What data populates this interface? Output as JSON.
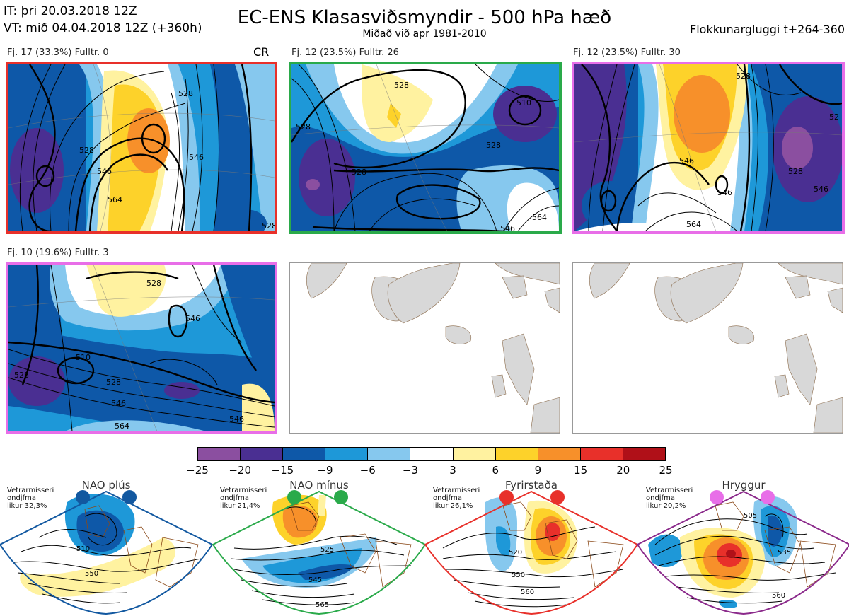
{
  "header": {
    "init_time": "IT: þri 20.03.2018 12Z",
    "valid_time": "VT: mið 04.04.2018 12Z  (+360h)",
    "title": "EC-ENS Klasasviðsmyndir - 500 hPa hæð",
    "subtitle": "Miðað við apr 1981-2010",
    "window": "Flokkunargluggi t+264-360"
  },
  "panels": [
    {
      "label": "Fj. 17 (33.3%)   Fulltr. 0",
      "tag": "CR",
      "border": "#e8302a",
      "contours": [
        "528",
        "546",
        "528",
        "564",
        "546",
        "528"
      ]
    },
    {
      "label": "Fj. 12 (23.5%)   Fulltr. 26",
      "tag": "",
      "border": "#2aaa4a",
      "contours": [
        "528",
        "510",
        "528",
        "528",
        "528",
        "546",
        "564"
      ]
    },
    {
      "label": "Fj. 12 (23.5%)   Fulltr. 30",
      "tag": "",
      "border": "#e86ee8",
      "contours": [
        "528",
        "546",
        "546",
        "528",
        "546",
        "564",
        "52"
      ]
    },
    {
      "label": "Fj. 10 (19.6%)   Fulltr. 3",
      "tag": "",
      "border": "#e86ee8",
      "contours": [
        "528",
        "546",
        "510",
        "528",
        "546",
        "546",
        "564",
        "528"
      ]
    }
  ],
  "colorbar": {
    "ticks": [
      "−25",
      "−20",
      "−15",
      "−9",
      "−6",
      "−3",
      "3",
      "6",
      "9",
      "15",
      "20",
      "25"
    ],
    "colors": [
      "#8b4fa0",
      "#4a2f92",
      "#0e58a8",
      "#1e98d8",
      "#86c8ee",
      "#ffffff",
      "#fff2a0",
      "#fdd22a",
      "#f7902a",
      "#e8302a",
      "#b01018"
    ]
  },
  "regimes": [
    {
      "title": "NAO plús",
      "note": "Vetrarmisseri\nondjfma\nlikur 32,3%",
      "border": "#1258a0",
      "dot": "#1258a0",
      "contours": [
        "510",
        "550"
      ]
    },
    {
      "title": "NAO mínus",
      "note": "Vetrarmisseri\nondjfma\nlikur 21,4%",
      "border": "#2aaa4a",
      "dot": "#2aaa4a",
      "contours": [
        "525",
        "545",
        "565"
      ]
    },
    {
      "title": "Fyrirstaða",
      "note": "Vetrarmisseri\nondjfma\nlikur 26,1%",
      "border": "#e8302a",
      "dot": "#e8302a",
      "contours": [
        "520",
        "550",
        "560"
      ]
    },
    {
      "title": "Hryggur",
      "note": "Vetrarmisseri\nondjfma\nlikur 20,2%",
      "border": "#8b2a8b",
      "dot": "#e86ee8",
      "contours": [
        "505",
        "535",
        "560"
      ]
    }
  ]
}
